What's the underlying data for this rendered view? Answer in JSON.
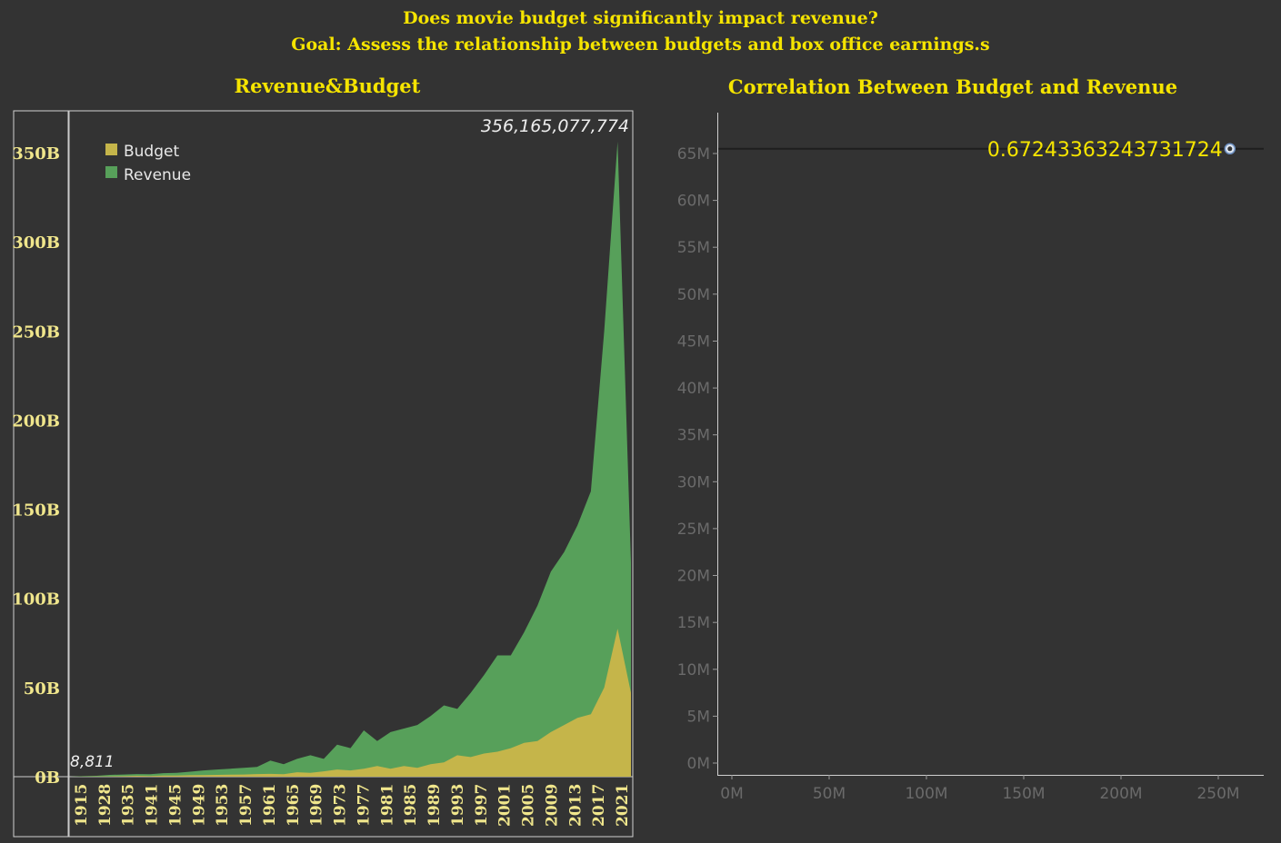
{
  "header": {
    "question": "Does movie budget significantly impact revenue?",
    "goal": "Goal: Assess the relationship between budgets and box office earnings.s"
  },
  "colors": {
    "background": "#333333",
    "title": "#f5e400",
    "budget": "#c5b54a",
    "revenue": "#57a05a",
    "axis_label_left": "#f0e68c",
    "axis_label_right": "#6a6a6a"
  },
  "chart_data": [
    {
      "type": "area",
      "title": "Revenue&Budget",
      "legend_position": "top-left",
      "ylim": [
        0,
        360000000000
      ],
      "y_ticks": [
        {
          "value": 0,
          "label": "0B"
        },
        {
          "value": 50000000000,
          "label": "50B"
        },
        {
          "value": 100000000000,
          "label": "100B"
        },
        {
          "value": 150000000000,
          "label": "150B"
        },
        {
          "value": 200000000000,
          "label": "200B"
        },
        {
          "value": 250000000000,
          "label": "250B"
        },
        {
          "value": 300000000000,
          "label": "300B"
        },
        {
          "value": 350000000000,
          "label": "350B"
        }
      ],
      "x_tick_labels": [
        "1915",
        "1928",
        "1935",
        "1941",
        "1945",
        "1949",
        "1953",
        "1957",
        "1961",
        "1965",
        "1969",
        "1973",
        "1977",
        "1981",
        "1985",
        "1989",
        "1993",
        "1997",
        "2001",
        "2005",
        "2009",
        "2013",
        "2017",
        "2021"
      ],
      "annotations": [
        {
          "label": "356,165,077,774",
          "at": "max"
        },
        {
          "label": "8,811",
          "at": "min"
        }
      ],
      "series": [
        {
          "name": "Budget",
          "values": [
            0,
            0.05,
            0.1,
            0.2,
            0.3,
            0.5,
            0.4,
            0.6,
            0.6,
            0.8,
            0.9,
            1.0,
            1.1,
            1.2,
            1.5,
            1.6,
            1.4,
            2.5,
            2.2,
            3.0,
            4.0,
            3.5,
            4.5,
            6,
            4.5,
            6,
            5,
            7,
            8,
            12,
            11,
            13,
            14,
            16,
            19,
            20,
            25,
            29,
            33,
            35,
            50,
            83,
            47
          ]
        },
        {
          "name": "Revenue",
          "values": [
            0,
            0.3,
            0.5,
            1.0,
            1.2,
            1.5,
            1.4,
            2.0,
            2.2,
            2.8,
            3.5,
            4.0,
            4.5,
            5.0,
            5.5,
            9,
            7,
            10,
            12,
            10,
            18,
            16,
            26,
            20,
            25,
            27,
            29,
            34,
            40,
            38,
            47,
            57,
            68,
            68,
            81,
            96,
            115,
            126,
            141,
            160,
            250,
            356.165,
            120
          ]
        }
      ]
    },
    {
      "type": "scatter",
      "title": "Correlation Between Budget and Revenue",
      "xlim": [
        0,
        270
      ],
      "ylim": [
        0,
        67
      ],
      "x_ticks": [
        {
          "value": 0,
          "label": "0M"
        },
        {
          "value": 50,
          "label": "50M"
        },
        {
          "value": 100,
          "label": "100M"
        },
        {
          "value": 150,
          "label": "150M"
        },
        {
          "value": 200,
          "label": "200M"
        },
        {
          "value": 250,
          "label": "250M"
        }
      ],
      "y_ticks": [
        {
          "value": 0,
          "label": "0M"
        },
        {
          "value": 5,
          "label": "5M"
        },
        {
          "value": 10,
          "label": "10M"
        },
        {
          "value": 15,
          "label": "15M"
        },
        {
          "value": 20,
          "label": "20M"
        },
        {
          "value": 25,
          "label": "25M"
        },
        {
          "value": 30,
          "label": "30M"
        },
        {
          "value": 35,
          "label": "35M"
        },
        {
          "value": 40,
          "label": "40M"
        },
        {
          "value": 45,
          "label": "45M"
        },
        {
          "value": 50,
          "label": "50M"
        },
        {
          "value": 55,
          "label": "55M"
        },
        {
          "value": 60,
          "label": "60M"
        },
        {
          "value": 65,
          "label": "65M"
        }
      ],
      "points": [
        {
          "x": 256,
          "y": 65.5
        }
      ],
      "reference_line_y": 65.5,
      "point_label": "0.67243363243731724"
    }
  ]
}
